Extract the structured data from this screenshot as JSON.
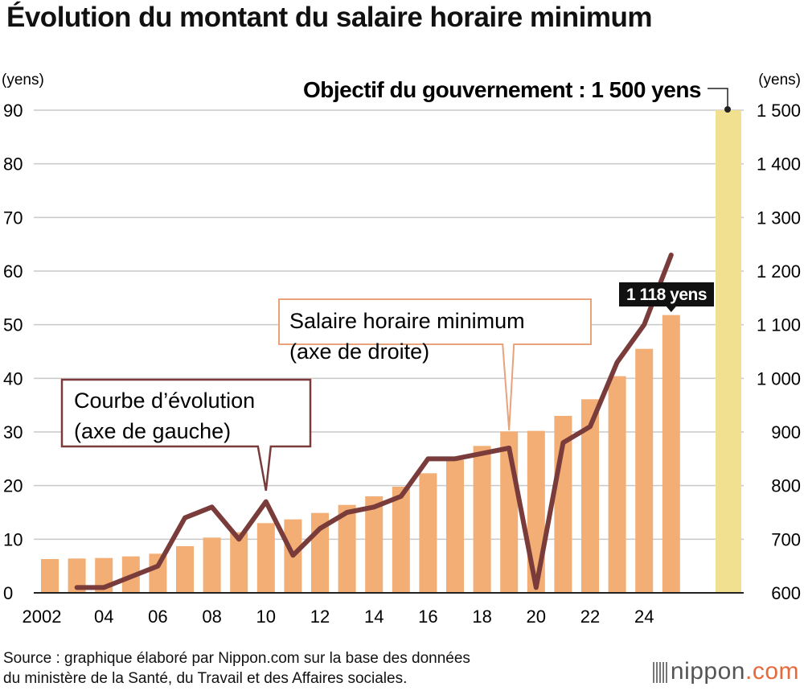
{
  "title": "Évolution du montant du salaire horaire minimum",
  "source_lines": [
    "Source : graphique élaboré par Nippon.com sur la base des données",
    "du ministère de la Santé, du Travail et des Affaires sociales."
  ],
  "logo": {
    "name": "nippon",
    "suffix": ".com"
  },
  "colors": {
    "bar": "#f2ae74",
    "target_bar": "#f1e08f",
    "line": "#7a3b3b",
    "grid": "#c9c9c9",
    "callout_border": "#e8a37a"
  },
  "chart_data": {
    "type": "bar",
    "x": [
      2002,
      2003,
      2004,
      2005,
      2006,
      2007,
      2008,
      2009,
      2010,
      2011,
      2012,
      2013,
      2014,
      2015,
      2016,
      2017,
      2018,
      2019,
      2020,
      2021,
      2022,
      2023,
      2024,
      2025
    ],
    "x_tick_labels": [
      "2002",
      "04",
      "06",
      "08",
      "10",
      "12",
      "14",
      "16",
      "18",
      "20",
      "22",
      "24"
    ],
    "x_tick_positions": [
      2002,
      2004,
      2006,
      2008,
      2010,
      2012,
      2014,
      2016,
      2018,
      2020,
      2022,
      2024
    ],
    "series": [
      {
        "name": "Salaire horaire minimum",
        "type": "bar",
        "axis": "right",
        "values": [
          663,
          664,
          665,
          668,
          673,
          687,
          703,
          713,
          730,
          737,
          749,
          764,
          780,
          798,
          823,
          848,
          874,
          901,
          902,
          930,
          961,
          1004,
          1055,
          1118
        ]
      },
      {
        "name": "Courbe d’évolution",
        "type": "line",
        "axis": "left",
        "x": [
          2003,
          2004,
          2005,
          2006,
          2007,
          2008,
          2009,
          2010,
          2011,
          2012,
          2013,
          2014,
          2015,
          2016,
          2017,
          2018,
          2019,
          2020,
          2021,
          2022,
          2023,
          2024,
          2025
        ],
        "values": [
          1,
          1,
          3,
          5,
          14,
          16,
          10,
          17,
          7,
          12,
          15,
          16,
          18,
          25,
          25,
          26,
          27,
          1,
          28,
          31,
          43,
          50,
          63
        ]
      }
    ],
    "target": {
      "label_prefix": "Objectif du gouvernement : ",
      "label_value": "1 500 yens",
      "value": 1500
    },
    "left_axis": {
      "unit": "(yens)",
      "ylim": [
        0,
        90
      ],
      "ticks": [
        0,
        10,
        20,
        30,
        40,
        50,
        60,
        70,
        80,
        90
      ],
      "tick_labels": [
        "0",
        "10",
        "20",
        "30",
        "40",
        "50",
        "60",
        "70",
        "80",
        "90"
      ]
    },
    "right_axis": {
      "unit": "(yens)",
      "ylim": [
        600,
        1500
      ],
      "ticks": [
        600,
        700,
        800,
        900,
        1000,
        1100,
        1200,
        1300,
        1400,
        1500
      ],
      "tick_labels": [
        "600",
        "700",
        "800",
        "900",
        "1 000",
        "1 100",
        "1 200",
        "1 300",
        "1 400",
        "1 500"
      ]
    },
    "annotations": {
      "last_value": {
        "text": "1 118 yens",
        "x": 2025,
        "value": 1118
      },
      "bar_callout": {
        "lines": [
          "Salaire horaire minimum",
          "(axe de droite)"
        ],
        "points_to_x": 2019
      },
      "line_callout": {
        "lines": [
          "Courbe d’évolution",
          "(axe de gauche)"
        ],
        "points_to_x": 2010
      }
    },
    "grid": true
  }
}
